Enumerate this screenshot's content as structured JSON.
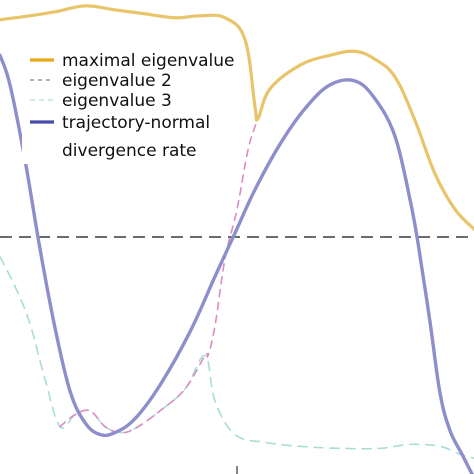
{
  "chart_data": {
    "type": "line",
    "title": "",
    "xlabel": "",
    "ylabel": "",
    "xlim": [
      0,
      474
    ],
    "ylim": [
      -1.2,
      1.2
    ],
    "zero_line": {
      "value": 0,
      "style": "dashed",
      "color": "#3a3a3a"
    },
    "grid": false,
    "legend_position": "top-left",
    "x_tick_marks": [
      237
    ],
    "series": [
      {
        "name": "maximal eigenvalue",
        "legend_label": "maximal eigenvalue",
        "color": "#e8c46a",
        "legend_color": "#e6a817",
        "dash": "solid",
        "points": [
          [
            0,
            1.1
          ],
          [
            30,
            1.12
          ],
          [
            55,
            1.14
          ],
          [
            85,
            1.17
          ],
          [
            115,
            1.15
          ],
          [
            145,
            1.13
          ],
          [
            175,
            1.11
          ],
          [
            200,
            1.12
          ],
          [
            225,
            1.11
          ],
          [
            245,
            1.0
          ],
          [
            255,
            0.66
          ],
          [
            258,
            0.6
          ],
          [
            270,
            0.75
          ],
          [
            300,
            0.87
          ],
          [
            330,
            0.92
          ],
          [
            355,
            0.94
          ],
          [
            375,
            0.9
          ],
          [
            395,
            0.81
          ],
          [
            415,
            0.59
          ],
          [
            435,
            0.32
          ],
          [
            455,
            0.14
          ],
          [
            474,
            0.04
          ]
        ]
      },
      {
        "name": "eigenvalue 2",
        "legend_label": "eigenvalue 2",
        "color": "#d98cc2",
        "legend_color": "#999999",
        "dash": "dashed",
        "points": [
          [
            60,
            -0.96
          ],
          [
            75,
            -0.9
          ],
          [
            90,
            -0.88
          ],
          [
            105,
            -0.96
          ],
          [
            120,
            -0.99
          ],
          [
            135,
            -0.97
          ],
          [
            160,
            -0.88
          ],
          [
            185,
            -0.77
          ],
          [
            205,
            -0.6
          ],
          [
            208,
            -0.6
          ],
          [
            215,
            -0.45
          ],
          [
            225,
            -0.11
          ],
          [
            237,
            0.14
          ],
          [
            248,
            0.44
          ],
          [
            258,
            0.6
          ],
          [
            270,
            0.75
          ],
          [
            300,
            0.87
          ],
          [
            330,
            0.92
          ],
          [
            355,
            0.94
          ],
          [
            375,
            0.9
          ],
          [
            395,
            0.81
          ],
          [
            415,
            0.59
          ],
          [
            435,
            0.32
          ],
          [
            455,
            0.14
          ],
          [
            474,
            0.04
          ]
        ]
      },
      {
        "name": "eigenvalue 3",
        "legend_label": "eigenvalue 3",
        "color": "#a8dcd6",
        "legend_color": "#c6e4e0",
        "dash": "dashed",
        "points": [
          [
            0,
            -0.1
          ],
          [
            15,
            -0.25
          ],
          [
            30,
            -0.44
          ],
          [
            45,
            -0.72
          ],
          [
            60,
            -0.96
          ],
          [
            75,
            -0.9
          ],
          [
            90,
            -0.88
          ],
          [
            105,
            -0.96
          ],
          [
            120,
            -0.99
          ],
          [
            135,
            -0.97
          ],
          [
            160,
            -0.88
          ],
          [
            185,
            -0.77
          ],
          [
            205,
            -0.6
          ],
          [
            215,
            -0.83
          ],
          [
            235,
            -1.0
          ],
          [
            265,
            -1.04
          ],
          [
            300,
            -1.06
          ],
          [
            340,
            -1.07
          ],
          [
            380,
            -1.07
          ],
          [
            410,
            -1.05
          ],
          [
            440,
            -1.06
          ],
          [
            460,
            -1.1
          ],
          [
            474,
            -1.12
          ]
        ]
      },
      {
        "name": "trajectory-normal divergence rate",
        "legend_label": [
          "trajectory-normal",
          "divergence rate"
        ],
        "color": "#8e8ecd",
        "legend_color": "#4a4aaa",
        "dash": "solid",
        "points": [
          [
            0,
            0.92
          ],
          [
            10,
            0.77
          ],
          [
            25,
            0.39
          ],
          [
            40,
            -0.06
          ],
          [
            55,
            -0.46
          ],
          [
            70,
            -0.78
          ],
          [
            85,
            -0.94
          ],
          [
            100,
            -1.0
          ],
          [
            115,
            -0.99
          ],
          [
            135,
            -0.92
          ],
          [
            160,
            -0.75
          ],
          [
            190,
            -0.48
          ],
          [
            215,
            -0.2
          ],
          [
            235,
            0.02
          ],
          [
            255,
            0.24
          ],
          [
            280,
            0.47
          ],
          [
            305,
            0.65
          ],
          [
            330,
            0.77
          ],
          [
            355,
            0.79
          ],
          [
            375,
            0.7
          ],
          [
            395,
            0.51
          ],
          [
            410,
            0.19
          ],
          [
            418,
            -0.03
          ],
          [
            430,
            -0.43
          ],
          [
            440,
            -0.79
          ],
          [
            450,
            -0.98
          ],
          [
            462,
            -1.1
          ],
          [
            474,
            -1.22
          ]
        ]
      }
    ]
  }
}
